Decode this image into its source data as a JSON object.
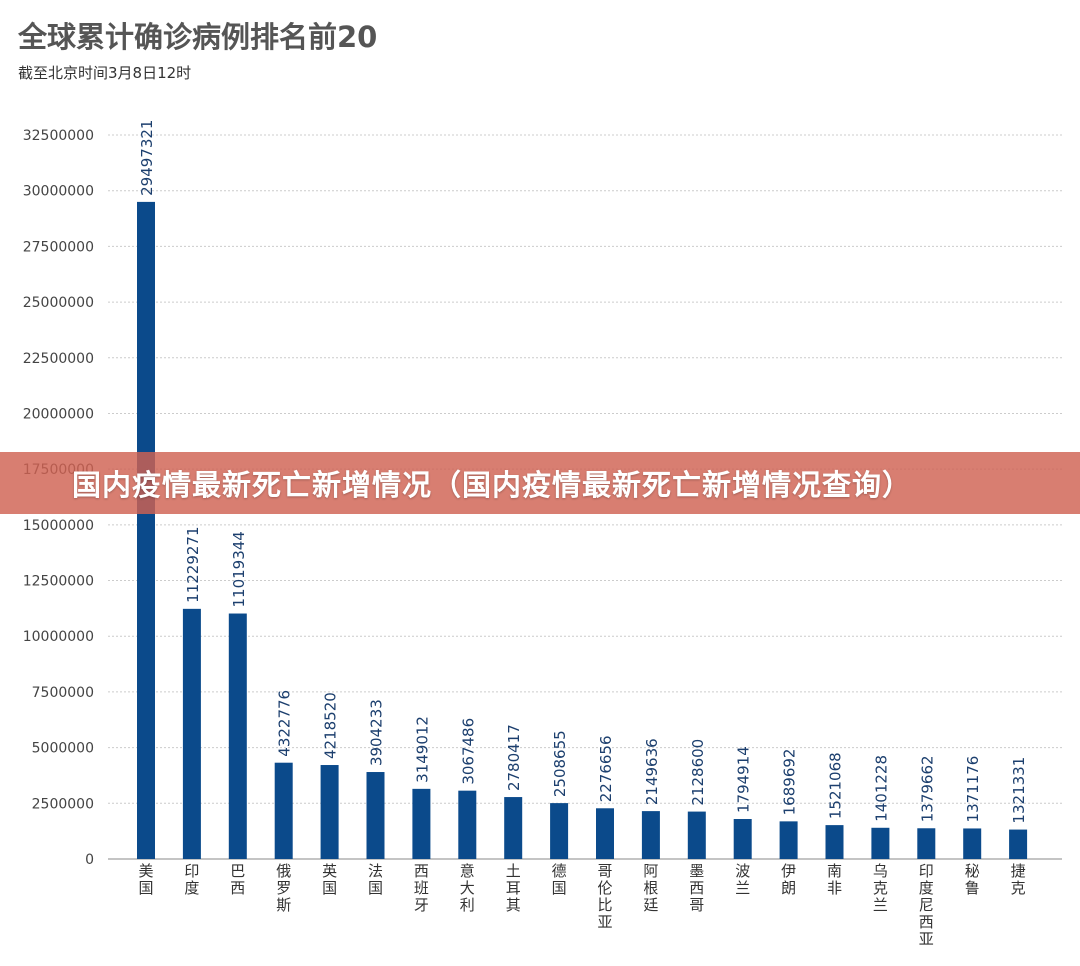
{
  "header": {
    "title": "全球累计确诊病例排名前20",
    "subtitle": "截至北京时间3月8日12时"
  },
  "banner": {
    "text": "国内疫情最新死亡新增情况（国内疫情最新死亡新增情况查询）"
  },
  "colors": {
    "bar": "#0b4a8b",
    "grid": "#cccccc",
    "banner": "#d06252"
  },
  "chart_data": {
    "type": "bar",
    "categories": [
      "美国",
      "印度",
      "巴西",
      "俄罗斯",
      "英国",
      "法国",
      "西班牙",
      "意大利",
      "土耳其",
      "德国",
      "哥伦比亚",
      "阿根廷",
      "墨西哥",
      "波兰",
      "伊朗",
      "南非",
      "乌克兰",
      "印度尼西亚",
      "秘鲁",
      "捷克"
    ],
    "values": [
      29497321,
      11229271,
      11019344,
      4322776,
      4218520,
      3904233,
      3149012,
      3067486,
      2780417,
      2508655,
      2276656,
      2149636,
      2128600,
      1794914,
      1689692,
      1521068,
      1401228,
      1379662,
      1371176,
      1321331
    ],
    "ylim": [
      0,
      32500000
    ],
    "yticks": [
      "0",
      "2500000",
      "5000000",
      "7500000",
      "10000000",
      "12500000",
      "15000000",
      "17500000",
      "20000000",
      "22500000",
      "25000000",
      "27500000",
      "30000000",
      "32500000"
    ],
    "grid": true
  }
}
